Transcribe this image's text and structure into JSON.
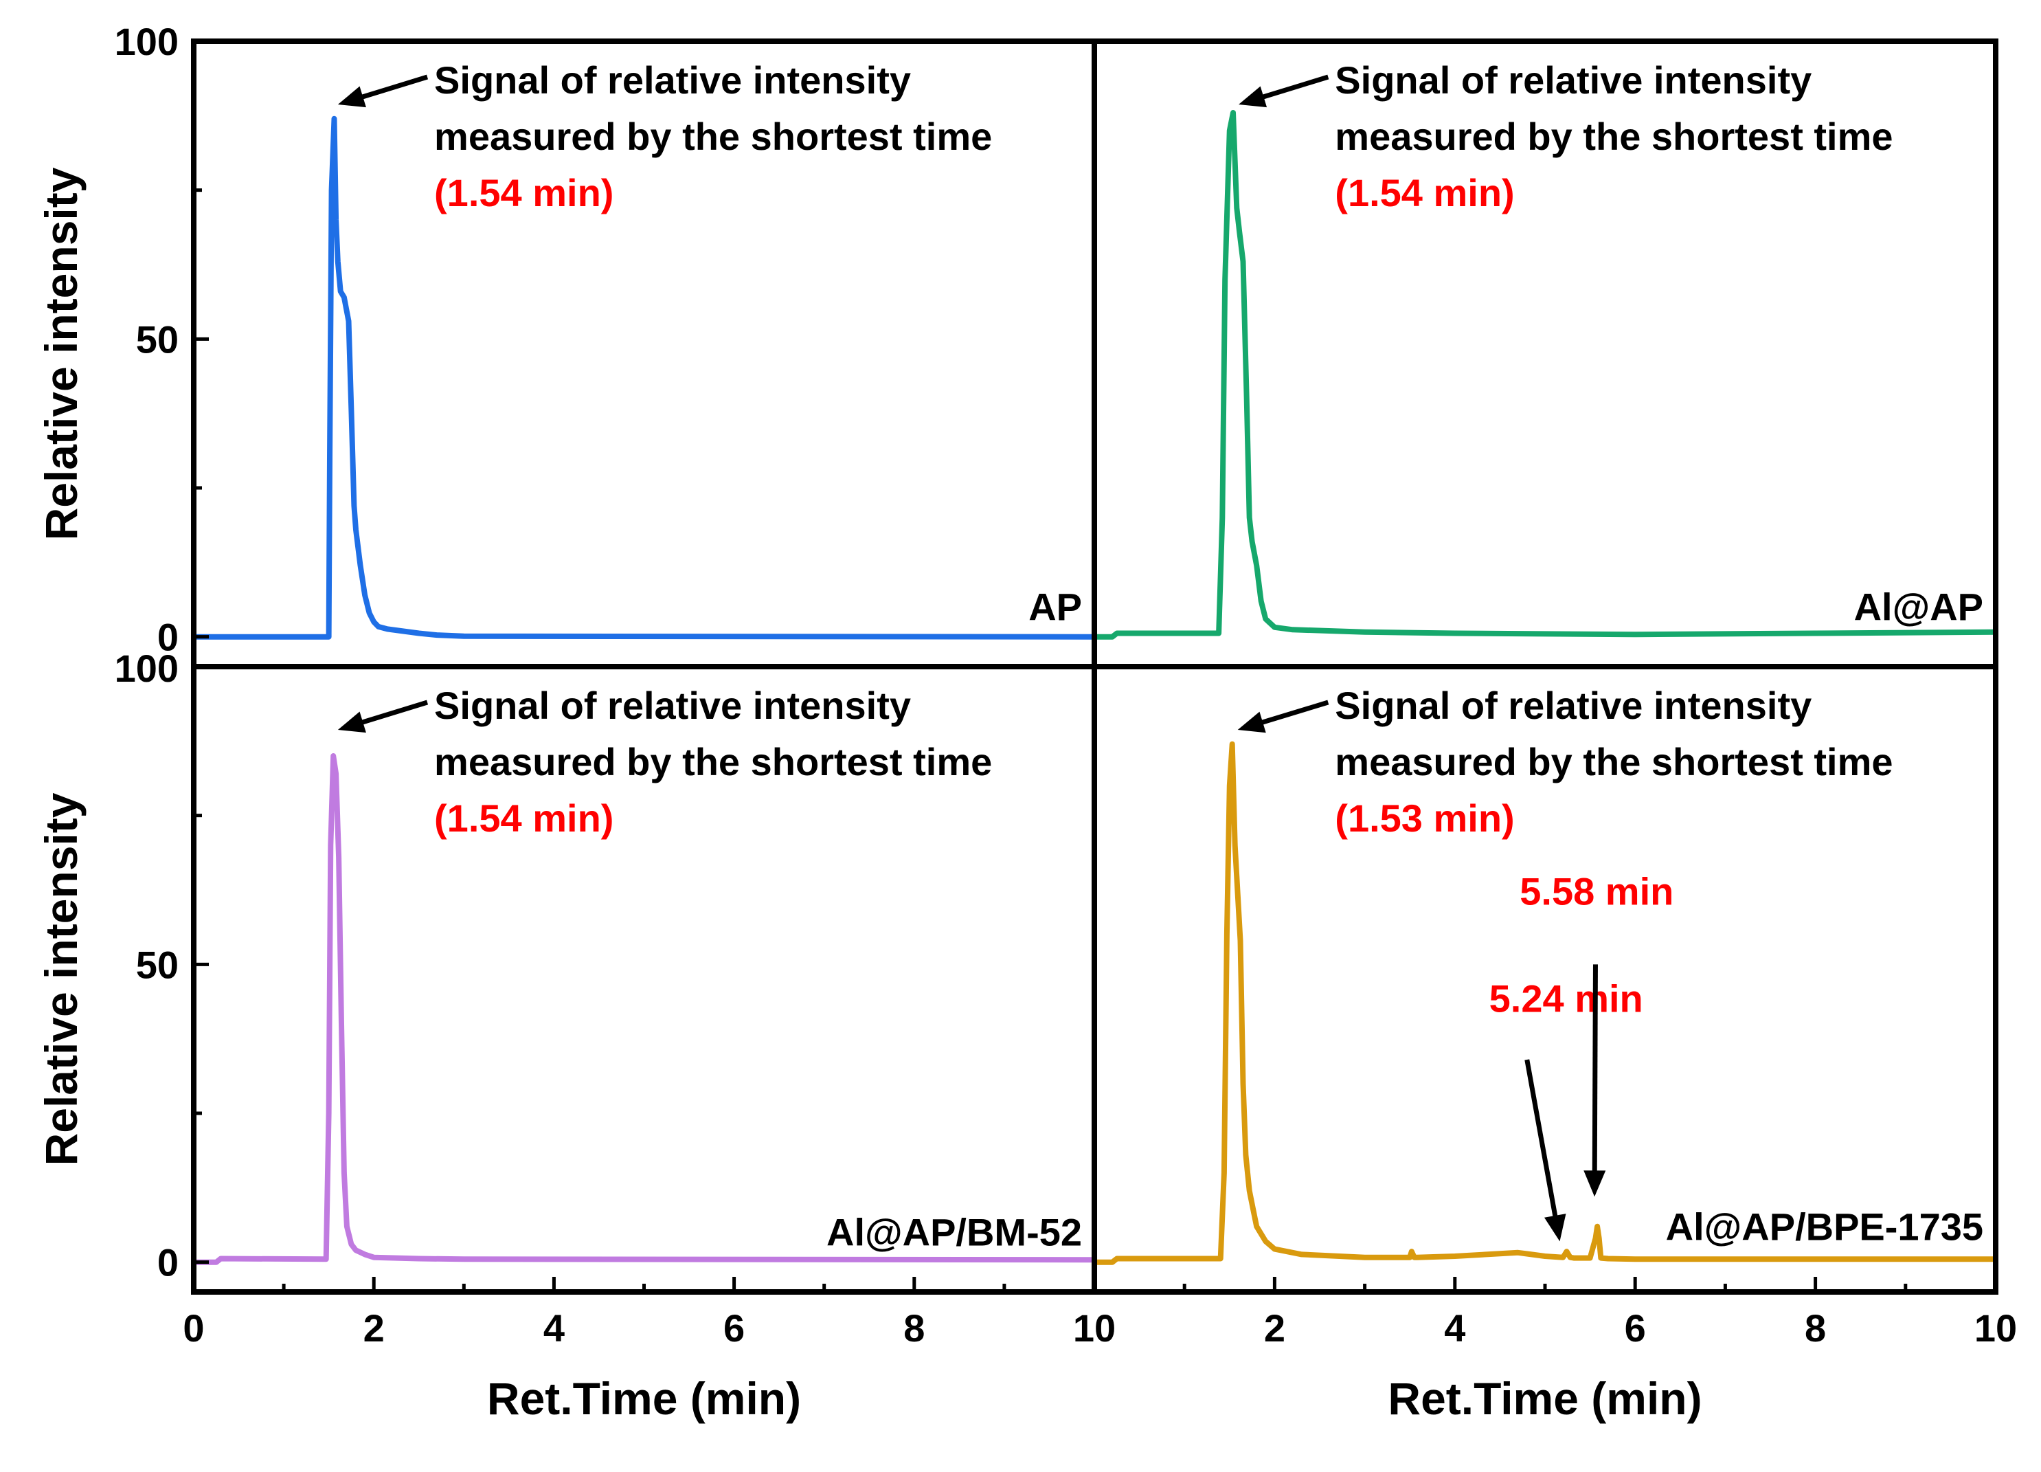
{
  "chart_data": {
    "type": "line",
    "layout": "2x2 panels",
    "xlabel": "Ret.Time (min)",
    "ylabel": "Relative intensity",
    "xlim": [
      0,
      10
    ],
    "ylim": [
      -5,
      100
    ],
    "x_ticks": [
      "0",
      "2",
      "4",
      "6",
      "8",
      "10"
    ],
    "y_ticks": [
      "0",
      "50",
      "100"
    ],
    "annotation_text": [
      "Signal of relative intensity",
      "measured by the shortest time"
    ],
    "panels": [
      {
        "id": "ap",
        "label": "AP",
        "color": "#1f6fe6",
        "peak_label": "(1.54 min)",
        "peak_time": 1.54,
        "x": [
          0,
          1.5,
          1.51,
          1.53,
          1.56,
          1.58,
          1.6,
          1.63,
          1.67,
          1.72,
          1.75,
          1.78,
          1.8,
          1.85,
          1.9,
          1.95,
          2.0,
          2.05,
          2.15,
          2.3,
          2.5,
          2.7,
          3.0,
          10
        ],
        "y": [
          0,
          0,
          30,
          75,
          87,
          70,
          63,
          58,
          57,
          53,
          38,
          22,
          18,
          12,
          7,
          4,
          2.5,
          1.7,
          1.3,
          1.0,
          0.6,
          0.3,
          0.1,
          0
        ]
      },
      {
        "id": "al-ap",
        "label": "Al@AP",
        "color": "#16a86c",
        "peak_label": "(1.54 min)",
        "peak_time": 1.54,
        "x": [
          0,
          0.2,
          0.25,
          1.38,
          1.42,
          1.45,
          1.5,
          1.54,
          1.58,
          1.61,
          1.65,
          1.69,
          1.72,
          1.75,
          1.8,
          1.85,
          1.9,
          2.0,
          2.2,
          3.0,
          4.0,
          6.0,
          8.0,
          10
        ],
        "y": [
          0,
          0,
          0.6,
          0.6,
          20,
          60,
          85,
          88,
          72,
          68,
          63,
          40,
          20,
          16,
          12,
          6,
          3,
          1.6,
          1.2,
          0.8,
          0.6,
          0.4,
          0.6,
          0.8
        ]
      },
      {
        "id": "al-ap-bm-52",
        "label": "Al@AP/BM-52",
        "color": "#c07be0",
        "peak_label": "(1.54 min)",
        "peak_time": 1.54,
        "x": [
          0,
          0.25,
          0.3,
          1.47,
          1.5,
          1.52,
          1.55,
          1.58,
          1.61,
          1.64,
          1.67,
          1.7,
          1.75,
          1.8,
          1.9,
          2.0,
          2.5,
          3.0,
          10
        ],
        "y": [
          0,
          0,
          0.6,
          0.5,
          25,
          70,
          85,
          82,
          68,
          40,
          15,
          6,
          3,
          2,
          1.3,
          0.8,
          0.6,
          0.5,
          0.4
        ]
      },
      {
        "id": "al-ap-bpe-1735",
        "label": "Al@AP/BPE-1735",
        "color": "#d99a0e",
        "peak_label": "(1.53 min)",
        "peak_time": 1.53,
        "x": [
          0,
          0.2,
          0.25,
          1.4,
          1.44,
          1.47,
          1.5,
          1.53,
          1.56,
          1.59,
          1.62,
          1.65,
          1.68,
          1.72,
          1.76,
          1.8,
          1.9,
          2.0,
          2.3,
          3.0,
          3.5,
          3.52,
          3.55,
          3.58,
          4.0,
          4.7,
          4.8,
          5.0,
          5.2,
          5.24,
          5.28,
          5.32,
          5.5,
          5.56,
          5.58,
          5.6,
          5.62,
          5.7,
          6.0,
          8.0,
          10
        ],
        "y": [
          0,
          0,
          0.6,
          0.6,
          15,
          55,
          80,
          87,
          70,
          62,
          54,
          30,
          18,
          12,
          9,
          6,
          3.5,
          2.2,
          1.3,
          0.8,
          0.8,
          1.8,
          0.8,
          0.8,
          1.0,
          1.6,
          1.4,
          1.0,
          0.8,
          1.8,
          0.8,
          0.7,
          0.7,
          4,
          6,
          4,
          0.7,
          0.6,
          0.5,
          0.5,
          0.5
        ]
      }
    ],
    "extra_annotations": [
      {
        "label": "5.24 min",
        "time": 5.24
      },
      {
        "label": "5.58 min",
        "time": 5.58
      }
    ]
  }
}
